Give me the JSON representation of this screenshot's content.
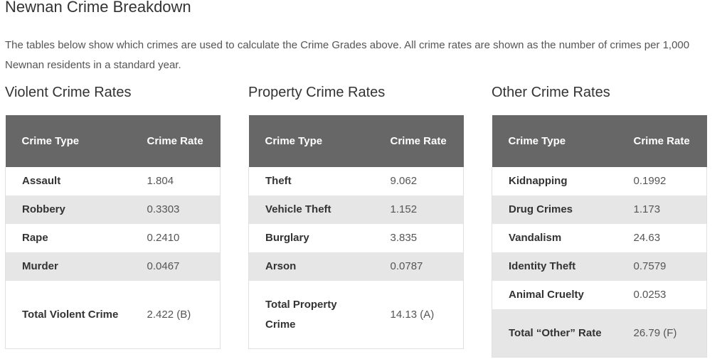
{
  "page": {
    "title": "Newnan Crime Breakdown",
    "intro": "The tables below show which crimes are used to calculate the Crime Grades above. All crime rates are shown as the number of crimes per 1,000 Newnan residents in a standard year."
  },
  "tables": [
    {
      "title": "Violent Crime Rates",
      "headers": {
        "type": "Crime Type",
        "rate": "Crime Rate"
      },
      "rows": [
        {
          "type": "Assault",
          "rate": "1.804"
        },
        {
          "type": "Robbery",
          "rate": "0.3303"
        },
        {
          "type": "Rape",
          "rate": "0.2410"
        },
        {
          "type": "Murder",
          "rate": "0.0467"
        },
        {
          "type": "Total Violent Crime",
          "rate": "2.422 (B)"
        }
      ]
    },
    {
      "title": "Property Crime Rates",
      "headers": {
        "type": "Crime Type",
        "rate": "Crime Rate"
      },
      "rows": [
        {
          "type": "Theft",
          "rate": "9.062"
        },
        {
          "type": "Vehicle Theft",
          "rate": "1.152"
        },
        {
          "type": "Burglary",
          "rate": "3.835"
        },
        {
          "type": "Arson",
          "rate": "0.0787"
        },
        {
          "type": "Total Property Crime",
          "rate": "14.13 (A)"
        }
      ]
    },
    {
      "title": "Other Crime Rates",
      "headers": {
        "type": "Crime Type",
        "rate": "Crime Rate"
      },
      "rows": [
        {
          "type": "Kidnapping",
          "rate": "0.1992"
        },
        {
          "type": "Drug Crimes",
          "rate": "1.173"
        },
        {
          "type": "Vandalism",
          "rate": "24.63"
        },
        {
          "type": "Identity Theft",
          "rate": "0.7579"
        },
        {
          "type": "Animal Cruelty",
          "rate": "0.0253"
        },
        {
          "type": "Total “Other” Rate",
          "rate": "26.79 (F)"
        }
      ]
    }
  ],
  "colors": {
    "header_bg": "#676767",
    "header_text": "#ffffff",
    "stripe": "#e6e6e6",
    "text": "#555555"
  }
}
